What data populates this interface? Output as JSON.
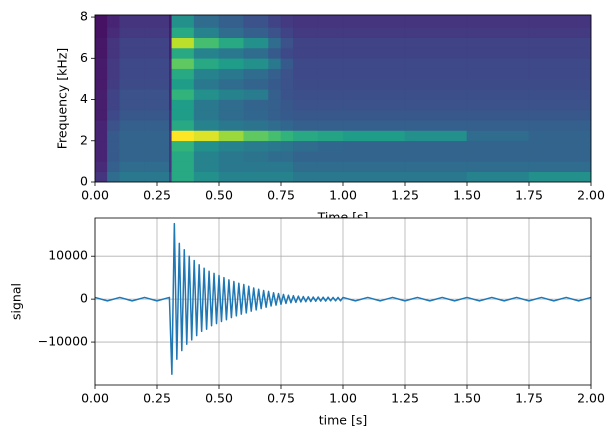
{
  "chart_data": [
    {
      "type": "heatmap",
      "colormap": "viridis",
      "xlabel": "Time [s]",
      "ylabel": "Frequency [kHz]",
      "xlim": [
        0,
        2
      ],
      "ylim": [
        0,
        8.1
      ],
      "xticks": [
        {
          "value": 0,
          "label": "0.00"
        },
        {
          "value": 0.25,
          "label": "0.25"
        },
        {
          "value": 0.5,
          "label": "0.50"
        },
        {
          "value": 0.75,
          "label": "0.75"
        },
        {
          "value": 1,
          "label": "1.00"
        },
        {
          "value": 1.25,
          "label": "1.25"
        },
        {
          "value": 1.5,
          "label": "1.50"
        },
        {
          "value": 1.75,
          "label": "1.75"
        },
        {
          "value": 2,
          "label": "2.00"
        }
      ],
      "yticks": [
        0,
        2,
        4,
        6,
        8
      ],
      "grid": false,
      "xbins": [
        0,
        0.05,
        0.1,
        0.2,
        0.3,
        0.31,
        0.4,
        0.5,
        0.6,
        0.7,
        0.75,
        0.8,
        0.9,
        1.0,
        1.25,
        1.5,
        1.75,
        2.0
      ],
      "ybins": [
        0,
        0.5,
        1,
        1.5,
        2,
        2.5,
        3,
        3.5,
        4,
        4.5,
        5,
        5.5,
        6,
        6.5,
        7,
        7.5,
        8.1
      ],
      "z": [
        [
          0.15,
          0.35,
          0.4,
          0.4,
          0.2,
          0.6,
          0.5,
          0.45,
          0.45,
          0.45,
          0.45,
          0.4,
          0.4,
          0.4,
          0.4,
          0.45,
          0.5
        ],
        [
          0.12,
          0.3,
          0.35,
          0.35,
          0.15,
          0.6,
          0.45,
          0.4,
          0.4,
          0.4,
          0.4,
          0.35,
          0.35,
          0.35,
          0.35,
          0.35,
          0.35
        ],
        [
          0.1,
          0.28,
          0.32,
          0.32,
          0.15,
          0.6,
          0.45,
          0.4,
          0.38,
          0.35,
          0.35,
          0.32,
          0.32,
          0.32,
          0.32,
          0.32,
          0.32
        ],
        [
          0.1,
          0.28,
          0.32,
          0.32,
          0.15,
          0.65,
          0.5,
          0.45,
          0.42,
          0.4,
          0.38,
          0.35,
          0.33,
          0.32,
          0.32,
          0.32,
          0.32
        ],
        [
          0.1,
          0.28,
          0.32,
          0.32,
          0.15,
          1.0,
          0.95,
          0.85,
          0.75,
          0.7,
          0.65,
          0.6,
          0.58,
          0.55,
          0.5,
          0.35,
          0.32
        ],
        [
          0.1,
          0.25,
          0.3,
          0.3,
          0.12,
          0.6,
          0.45,
          0.4,
          0.38,
          0.35,
          0.33,
          0.3,
          0.3,
          0.3,
          0.3,
          0.3,
          0.3
        ],
        [
          0.08,
          0.22,
          0.27,
          0.27,
          0.12,
          0.55,
          0.4,
          0.35,
          0.33,
          0.3,
          0.28,
          0.27,
          0.27,
          0.27,
          0.27,
          0.27,
          0.27
        ],
        [
          0.08,
          0.2,
          0.25,
          0.25,
          0.1,
          0.55,
          0.4,
          0.35,
          0.32,
          0.3,
          0.27,
          0.25,
          0.25,
          0.25,
          0.25,
          0.25,
          0.25
        ],
        [
          0.08,
          0.2,
          0.25,
          0.25,
          0.1,
          0.65,
          0.5,
          0.45,
          0.42,
          0.3,
          0.26,
          0.24,
          0.24,
          0.24,
          0.24,
          0.24,
          0.24
        ],
        [
          0.07,
          0.18,
          0.23,
          0.23,
          0.1,
          0.55,
          0.4,
          0.35,
          0.32,
          0.28,
          0.25,
          0.23,
          0.23,
          0.23,
          0.23,
          0.23,
          0.23
        ],
        [
          0.07,
          0.17,
          0.22,
          0.22,
          0.1,
          0.6,
          0.45,
          0.4,
          0.35,
          0.3,
          0.25,
          0.22,
          0.22,
          0.22,
          0.22,
          0.22,
          0.22
        ],
        [
          0.07,
          0.17,
          0.22,
          0.22,
          0.1,
          0.75,
          0.6,
          0.55,
          0.5,
          0.4,
          0.28,
          0.22,
          0.22,
          0.22,
          0.22,
          0.22,
          0.22
        ],
        [
          0.06,
          0.15,
          0.2,
          0.2,
          0.08,
          0.6,
          0.45,
          0.4,
          0.35,
          0.28,
          0.22,
          0.2,
          0.2,
          0.2,
          0.2,
          0.2,
          0.2
        ],
        [
          0.06,
          0.15,
          0.2,
          0.2,
          0.08,
          0.9,
          0.7,
          0.6,
          0.5,
          0.35,
          0.25,
          0.2,
          0.2,
          0.2,
          0.2,
          0.2,
          0.2
        ],
        [
          0.05,
          0.12,
          0.17,
          0.17,
          0.07,
          0.6,
          0.45,
          0.35,
          0.3,
          0.25,
          0.2,
          0.17,
          0.17,
          0.17,
          0.17,
          0.17,
          0.17
        ],
        [
          0.05,
          0.1,
          0.15,
          0.15,
          0.06,
          0.5,
          0.35,
          0.3,
          0.25,
          0.2,
          0.17,
          0.15,
          0.15,
          0.15,
          0.15,
          0.15,
          0.15
        ]
      ]
    },
    {
      "type": "line",
      "xlabel": "time [s]",
      "ylabel": "signal",
      "xlim": [
        0,
        2
      ],
      "ylim": [
        -20000,
        18900
      ],
      "xticks": [
        {
          "value": 0,
          "label": "0.00"
        },
        {
          "value": 0.25,
          "label": "0.25"
        },
        {
          "value": 0.5,
          "label": "0.50"
        },
        {
          "value": 0.75,
          "label": "0.75"
        },
        {
          "value": 1,
          "label": "1.00"
        },
        {
          "value": 1.25,
          "label": "1.25"
        },
        {
          "value": 1.5,
          "label": "1.50"
        },
        {
          "value": 1.75,
          "label": "1.75"
        },
        {
          "value": 2,
          "label": "2.00"
        }
      ],
      "yticks": [
        {
          "value": -10000,
          "label": "−10000"
        },
        0,
        10000
      ],
      "grid": true,
      "x": [
        0,
        0.05,
        0.1,
        0.15,
        0.2,
        0.25,
        0.3,
        0.31,
        0.32,
        0.33,
        0.34,
        0.35,
        0.36,
        0.37,
        0.38,
        0.39,
        0.4,
        0.41,
        0.42,
        0.43,
        0.44,
        0.45,
        0.46,
        0.47,
        0.48,
        0.49,
        0.5,
        0.51,
        0.52,
        0.53,
        0.54,
        0.55,
        0.56,
        0.57,
        0.58,
        0.59,
        0.6,
        0.61,
        0.62,
        0.63,
        0.64,
        0.65,
        0.66,
        0.67,
        0.68,
        0.69,
        0.7,
        0.71,
        0.72,
        0.73,
        0.74,
        0.75,
        0.76,
        0.77,
        0.78,
        0.79,
        0.8,
        0.81,
        0.82,
        0.83,
        0.84,
        0.85,
        0.86,
        0.87,
        0.88,
        0.89,
        0.9,
        0.91,
        0.92,
        0.93,
        0.94,
        0.95,
        0.96,
        0.97,
        0.98,
        0.99,
        1.0,
        1.05,
        1.1,
        1.15,
        1.2,
        1.25,
        1.3,
        1.35,
        1.4,
        1.45,
        1.5,
        1.55,
        1.6,
        1.65,
        1.7,
        1.75,
        1.8,
        1.85,
        1.9,
        1.95,
        2.0
      ],
      "series": [
        {
          "color": "#1f77b4",
          "values": [
            400,
            -400,
            400,
            -400,
            400,
            -400,
            400,
            -17500,
            17600,
            -14000,
            13000,
            -12000,
            11500,
            -10500,
            10000,
            -9500,
            9000,
            -8500,
            8000,
            -7500,
            7200,
            -7000,
            6500,
            -6200,
            6000,
            -5700,
            5500,
            -5200,
            5000,
            -4800,
            4500,
            -4300,
            4100,
            -3900,
            3700,
            -3500,
            3400,
            -3200,
            3000,
            -2800,
            2600,
            -2500,
            2300,
            -2200,
            2000,
            -1900,
            1800,
            -1600,
            1500,
            -1400,
            1300,
            -1200,
            1100,
            -1000,
            900,
            -850,
            800,
            -750,
            700,
            -650,
            600,
            -600,
            550,
            -550,
            500,
            -500,
            500,
            -450,
            450,
            -450,
            450,
            -400,
            400,
            -400,
            400,
            -400,
            400,
            -400,
            400,
            -400,
            400,
            -400,
            400,
            -400,
            400,
            -400,
            400,
            -400,
            400,
            -400,
            400,
            -400,
            400,
            -400,
            400,
            -400,
            400
          ]
        }
      ]
    }
  ]
}
